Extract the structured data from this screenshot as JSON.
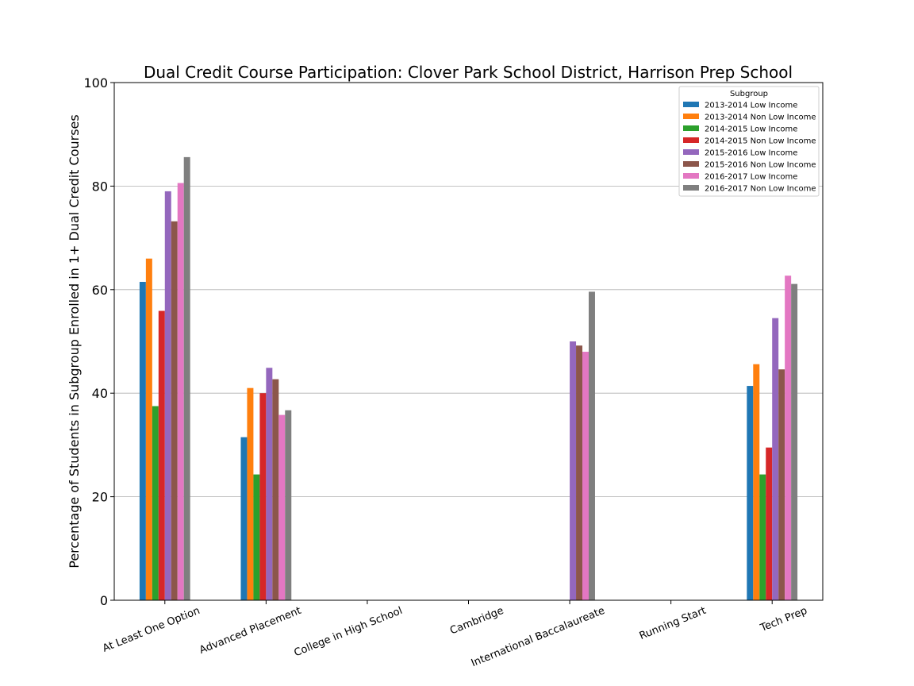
{
  "chart_data": {
    "type": "bar",
    "title": "Dual Credit Course Participation: Clover Park School District, Harrison Prep School",
    "xlabel": "",
    "ylabel": "Percentage of Students in Subgroup Enrolled in 1+ Dual Credit Courses",
    "ylim": [
      0,
      100
    ],
    "yticks": [
      0,
      20,
      40,
      60,
      80,
      100
    ],
    "grid": "y",
    "legend": {
      "title": "Subgroup",
      "position": "top-right"
    },
    "categories": [
      "At Least One Option",
      "Advanced Placement",
      "College in High School",
      "Cambridge",
      "International Baccalaureate",
      "Running Start",
      "Tech Prep"
    ],
    "series": [
      {
        "name": "2013-2014 Low Income",
        "color": "#1f77b4",
        "values": [
          61.5,
          31.5,
          0,
          0,
          0,
          0,
          41.4
        ]
      },
      {
        "name": "2013-2014 Non Low Income",
        "color": "#ff7f0e",
        "values": [
          66.0,
          41.0,
          0,
          0,
          0,
          0,
          45.6
        ]
      },
      {
        "name": "2014-2015 Low Income",
        "color": "#2ca02c",
        "values": [
          37.5,
          24.3,
          0,
          0,
          0,
          0,
          24.3
        ]
      },
      {
        "name": "2014-2015 Non Low Income",
        "color": "#d62728",
        "values": [
          55.9,
          40.0,
          0,
          0,
          0,
          0,
          29.5
        ]
      },
      {
        "name": "2015-2016 Low Income",
        "color": "#9467bd",
        "values": [
          79.0,
          44.9,
          0,
          0,
          50.0,
          0,
          54.5
        ]
      },
      {
        "name": "2015-2016 Non Low Income",
        "color": "#8c564b",
        "values": [
          73.2,
          42.7,
          0,
          0,
          49.2,
          0,
          44.6
        ]
      },
      {
        "name": "2016-2017 Low Income",
        "color": "#e377c2",
        "values": [
          80.6,
          35.8,
          0,
          0,
          48.0,
          0,
          62.7
        ]
      },
      {
        "name": "2016-2017 Non Low Income",
        "color": "#7f7f7f",
        "values": [
          85.6,
          36.7,
          0,
          0,
          59.6,
          0,
          61.1
        ]
      }
    ]
  }
}
